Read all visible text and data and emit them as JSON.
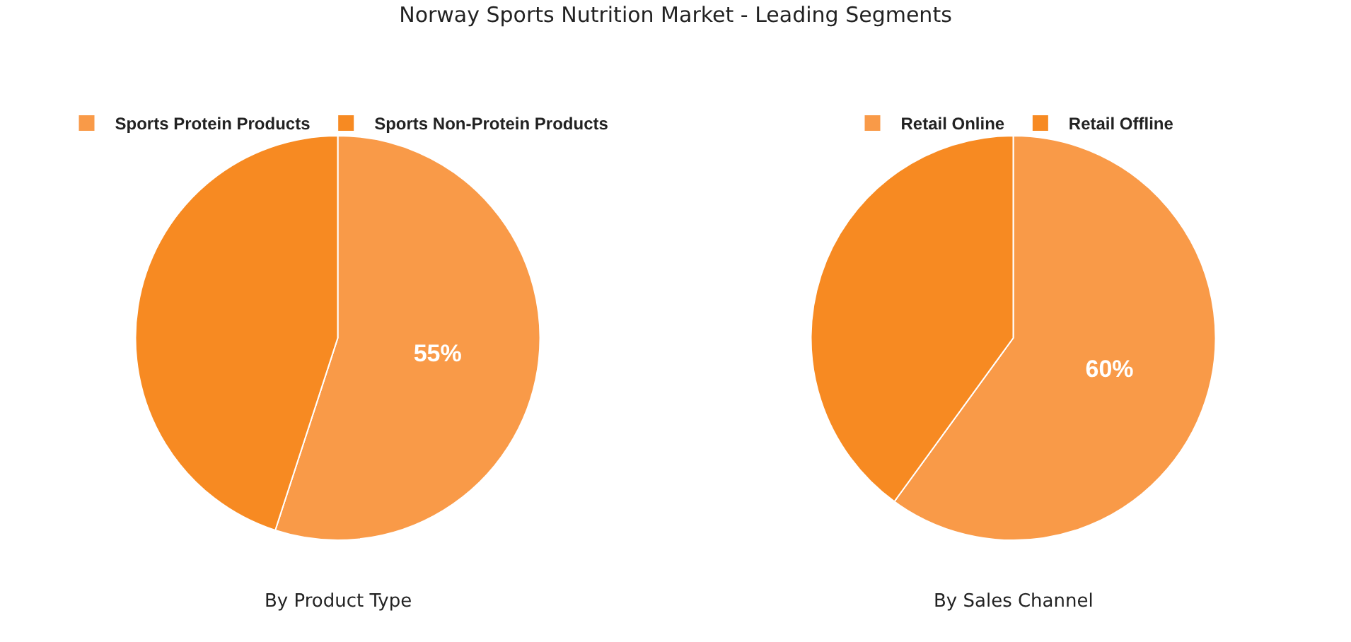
{
  "chart_data": [
    {
      "type": "pie",
      "title": "Norway Sports Nutrition Market - Leading Segments",
      "xlabel": "By Product Type",
      "categories": [
        "Sports Protein Products",
        "Sports Non-Protein Products"
      ],
      "values": [
        55,
        45
      ],
      "colors": [
        "#f99a48",
        "#f78a22"
      ],
      "value_labels": [
        "55%",
        null
      ],
      "legend": "top"
    },
    {
      "type": "pie",
      "xlabel": "By Sales Channel",
      "categories": [
        "Retail Online",
        "Retail Offline"
      ],
      "values": [
        60,
        40
      ],
      "colors": [
        "#f99a48",
        "#f78a22"
      ],
      "value_labels": [
        "60%",
        null
      ],
      "legend": "top"
    }
  ]
}
